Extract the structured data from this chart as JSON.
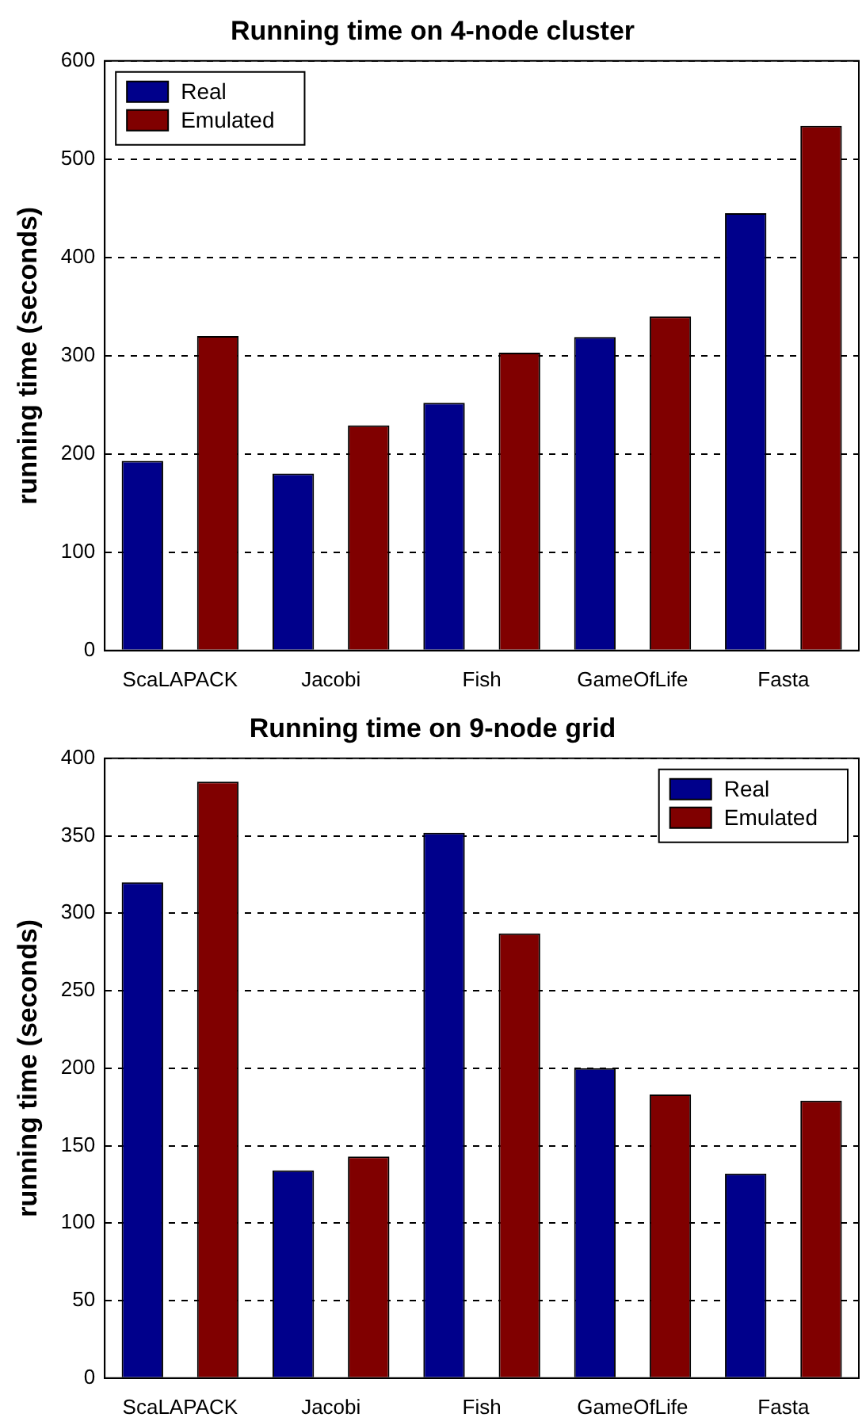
{
  "chart_data": [
    {
      "type": "bar",
      "title": "Running time on 4-node cluster",
      "ylabel": "running time (seconds)",
      "categories": [
        "ScaLAPACK",
        "Jacobi",
        "Fish",
        "GameOfLife",
        "Fasta"
      ],
      "series": [
        {
          "name": "Real",
          "color": "#00008b",
          "values": [
            193,
            180,
            252,
            319,
            445
          ]
        },
        {
          "name": "Emulated",
          "color": "#800000",
          "values": [
            320,
            229,
            303,
            340,
            534
          ]
        }
      ],
      "ylim": [
        0,
        600
      ],
      "yticks": [
        0,
        100,
        200,
        300,
        400,
        500,
        600
      ],
      "grid": "y",
      "legend": "top left"
    },
    {
      "type": "bar",
      "title": "Running time on 9-node grid",
      "ylabel": "running time (seconds)",
      "categories": [
        "ScaLAPACK",
        "Jacobi",
        "Fish",
        "GameOfLife",
        "Fasta"
      ],
      "series": [
        {
          "name": "Real",
          "color": "#00008b",
          "values": [
            320,
            134,
            352,
            200,
            132
          ]
        },
        {
          "name": "Emulated",
          "color": "#800000",
          "values": [
            385,
            143,
            287,
            183,
            179
          ]
        }
      ],
      "ylim": [
        0,
        400
      ],
      "yticks": [
        0,
        50,
        100,
        150,
        200,
        250,
        300,
        350,
        400
      ],
      "grid": "y",
      "legend": "top right"
    }
  ]
}
